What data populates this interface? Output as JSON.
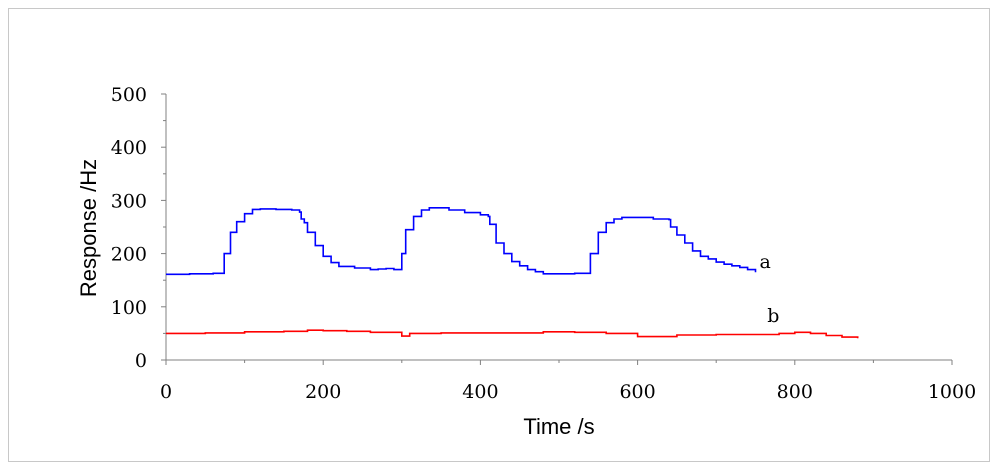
{
  "chart_data": {
    "type": "line",
    "title": "",
    "xlabel": "Time /s",
    "ylabel": "Response /Hz",
    "xlim": [
      0,
      1000
    ],
    "ylim": [
      0,
      500
    ],
    "xticks": [
      "0",
      "200",
      "400",
      "600",
      "800",
      "1000"
    ],
    "yticks": [
      "0",
      "100",
      "200",
      "300",
      "400",
      "500"
    ],
    "grid": false,
    "series": [
      {
        "name": "a",
        "color": "#0000ff",
        "x": [
          0,
          30,
          60,
          74,
          74,
          82,
          90,
          100,
          110,
          120,
          140,
          160,
          170,
          172,
          176,
          180,
          190,
          200,
          210,
          220,
          240,
          260,
          270,
          280,
          290,
          300,
          300,
          305,
          315,
          325,
          335,
          345,
          360,
          380,
          400,
          410,
          412,
          420,
          430,
          440,
          450,
          460,
          470,
          480,
          500,
          520,
          540,
          540,
          550,
          560,
          570,
          580,
          600,
          620,
          640,
          642,
          650,
          660,
          670,
          680,
          690,
          700,
          710,
          720,
          730,
          740,
          750
        ],
        "y": [
          161,
          162,
          163,
          165,
          200,
          240,
          260,
          275,
          283,
          284,
          283,
          282,
          278,
          265,
          258,
          240,
          215,
          195,
          183,
          176,
          173,
          170,
          171,
          172,
          170,
          172,
          200,
          245,
          270,
          282,
          286,
          286,
          282,
          277,
          273,
          270,
          255,
          220,
          200,
          185,
          177,
          170,
          166,
          162,
          162,
          163,
          163,
          200,
          240,
          258,
          265,
          268,
          268,
          265,
          264,
          250,
          235,
          220,
          205,
          195,
          190,
          184,
          180,
          177,
          174,
          170,
          165
        ]
      },
      {
        "name": "b",
        "color": "#ff0000",
        "x": [
          0,
          50,
          100,
          150,
          180,
          200,
          230,
          260,
          300,
          310,
          350,
          400,
          450,
          480,
          520,
          560,
          600,
          650,
          700,
          750,
          780,
          800,
          820,
          840,
          860,
          880
        ],
        "y": [
          50,
          51,
          53,
          54,
          56,
          55,
          54,
          52,
          45,
          50,
          51,
          51,
          51,
          53,
          52,
          50,
          44,
          47,
          48,
          48,
          50,
          52,
          50,
          46,
          43,
          41
        ]
      }
    ],
    "annotations": [
      {
        "text": "a",
        "series": "a"
      },
      {
        "text": "b",
        "series": "b"
      }
    ]
  }
}
